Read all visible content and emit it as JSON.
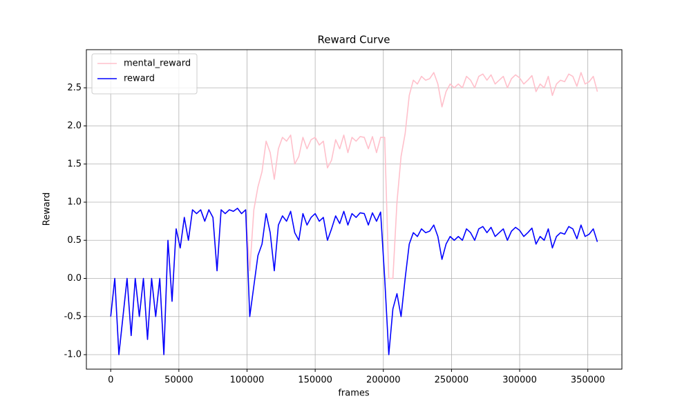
{
  "chart_data": {
    "type": "line",
    "title": "Reward Curve",
    "x_label": "frames",
    "y_label": "Reward",
    "x": [
      0,
      3000,
      6000,
      9000,
      12000,
      15000,
      18000,
      21000,
      24000,
      27000,
      30000,
      33000,
      36000,
      39000,
      42000,
      45000,
      48000,
      51000,
      54000,
      57000,
      60000,
      63000,
      66000,
      69000,
      72000,
      75000,
      78000,
      81000,
      84000,
      87000,
      90000,
      93000,
      96000,
      99000,
      102000,
      105000,
      108000,
      111000,
      114000,
      117000,
      120000,
      123000,
      126000,
      129000,
      132000,
      135000,
      138000,
      141000,
      144000,
      147000,
      150000,
      153000,
      156000,
      159000,
      162000,
      165000,
      168000,
      171000,
      174000,
      177000,
      180000,
      183000,
      186000,
      189000,
      192000,
      195000,
      198000,
      201000,
      204000,
      207000,
      210000,
      213000,
      216000,
      219000,
      222000,
      225000,
      228000,
      231000,
      234000,
      237000,
      240000,
      243000,
      246000,
      249000,
      252000,
      255000,
      258000,
      261000,
      264000,
      267000,
      270000,
      273000,
      276000,
      279000,
      282000,
      285000,
      288000,
      291000,
      294000,
      297000,
      300000,
      303000,
      306000,
      309000,
      312000,
      315000,
      318000,
      321000,
      324000,
      327000,
      330000,
      333000,
      336000,
      339000,
      342000,
      345000,
      348000,
      351000,
      354000,
      357000
    ],
    "series": [
      {
        "name": "mental_reward",
        "color": "pink",
        "values": [
          -0.5,
          0,
          -1.0,
          -0.5,
          0,
          -0.75,
          0,
          -0.5,
          0,
          -0.8,
          0,
          -0.5,
          0,
          -1.0,
          0.5,
          -0.3,
          0.65,
          0.4,
          0.8,
          0.5,
          0.9,
          0.85,
          0.9,
          0.75,
          0.9,
          0.8,
          0.1,
          0.9,
          0.85,
          0.9,
          0.88,
          0.92,
          0.85,
          0.9,
          0.1,
          0.9,
          1.2,
          1.4,
          1.8,
          1.65,
          1.3,
          1.7,
          1.85,
          1.8,
          1.88,
          1.5,
          1.6,
          1.85,
          1.7,
          1.82,
          1.85,
          1.75,
          1.8,
          1.45,
          1.55,
          1.82,
          1.7,
          1.88,
          1.65,
          1.85,
          1.8,
          1.86,
          1.85,
          1.7,
          1.86,
          1.65,
          1.85,
          1.85,
          0.0,
          0.0,
          1.0,
          1.6,
          1.9,
          2.4,
          2.6,
          2.55,
          2.65,
          2.6,
          2.62,
          2.7,
          2.55,
          2.25,
          2.45,
          2.55,
          2.5,
          2.55,
          2.5,
          2.65,
          2.6,
          2.5,
          2.65,
          2.68,
          2.6,
          2.67,
          2.55,
          2.6,
          2.65,
          2.5,
          2.62,
          2.67,
          2.63,
          2.55,
          2.6,
          2.66,
          2.45,
          2.55,
          2.5,
          2.65,
          2.4,
          2.55,
          2.6,
          2.58,
          2.68,
          2.65,
          2.52,
          2.7,
          2.55,
          2.58,
          2.65,
          2.45
        ]
      },
      {
        "name": "reward",
        "color": "blue",
        "values": [
          -0.5,
          0,
          -1.0,
          -0.5,
          0,
          -0.75,
          0,
          -0.5,
          0,
          -0.8,
          0,
          -0.5,
          0,
          -1.0,
          0.5,
          -0.3,
          0.65,
          0.4,
          0.8,
          0.5,
          0.9,
          0.85,
          0.9,
          0.75,
          0.9,
          0.8,
          0.1,
          0.9,
          0.85,
          0.9,
          0.88,
          0.92,
          0.85,
          0.9,
          -0.5,
          -0.1,
          0.3,
          0.45,
          0.85,
          0.6,
          0.1,
          0.7,
          0.82,
          0.75,
          0.88,
          0.6,
          0.5,
          0.85,
          0.7,
          0.8,
          0.85,
          0.75,
          0.8,
          0.5,
          0.65,
          0.82,
          0.72,
          0.88,
          0.7,
          0.85,
          0.8,
          0.86,
          0.85,
          0.7,
          0.86,
          0.75,
          0.87,
          0.0,
          -1.0,
          -0.4,
          -0.2,
          -0.5,
          0.0,
          0.45,
          0.6,
          0.55,
          0.65,
          0.6,
          0.62,
          0.7,
          0.55,
          0.25,
          0.45,
          0.55,
          0.5,
          0.55,
          0.5,
          0.65,
          0.6,
          0.5,
          0.65,
          0.68,
          0.6,
          0.67,
          0.55,
          0.6,
          0.65,
          0.5,
          0.62,
          0.67,
          0.63,
          0.55,
          0.6,
          0.66,
          0.45,
          0.55,
          0.5,
          0.65,
          0.4,
          0.55,
          0.6,
          0.58,
          0.68,
          0.65,
          0.52,
          0.7,
          0.55,
          0.58,
          0.65,
          0.48
        ]
      }
    ],
    "xlim": [
      -17850,
      375000
    ],
    "ylim": [
      -1.19,
      3.0
    ],
    "xticks": [
      0,
      50000,
      100000,
      150000,
      200000,
      250000,
      300000,
      350000
    ],
    "yticks": [
      {
        "value": -1,
        "label": "-1.0"
      },
      -0.5,
      {
        "value": 0,
        "label": "0.0"
      },
      0.5,
      {
        "value": 1,
        "label": "1.0"
      },
      1.5,
      {
        "value": 2,
        "label": "2.0"
      },
      2.5
    ],
    "grid": true,
    "legend": "upper left"
  }
}
